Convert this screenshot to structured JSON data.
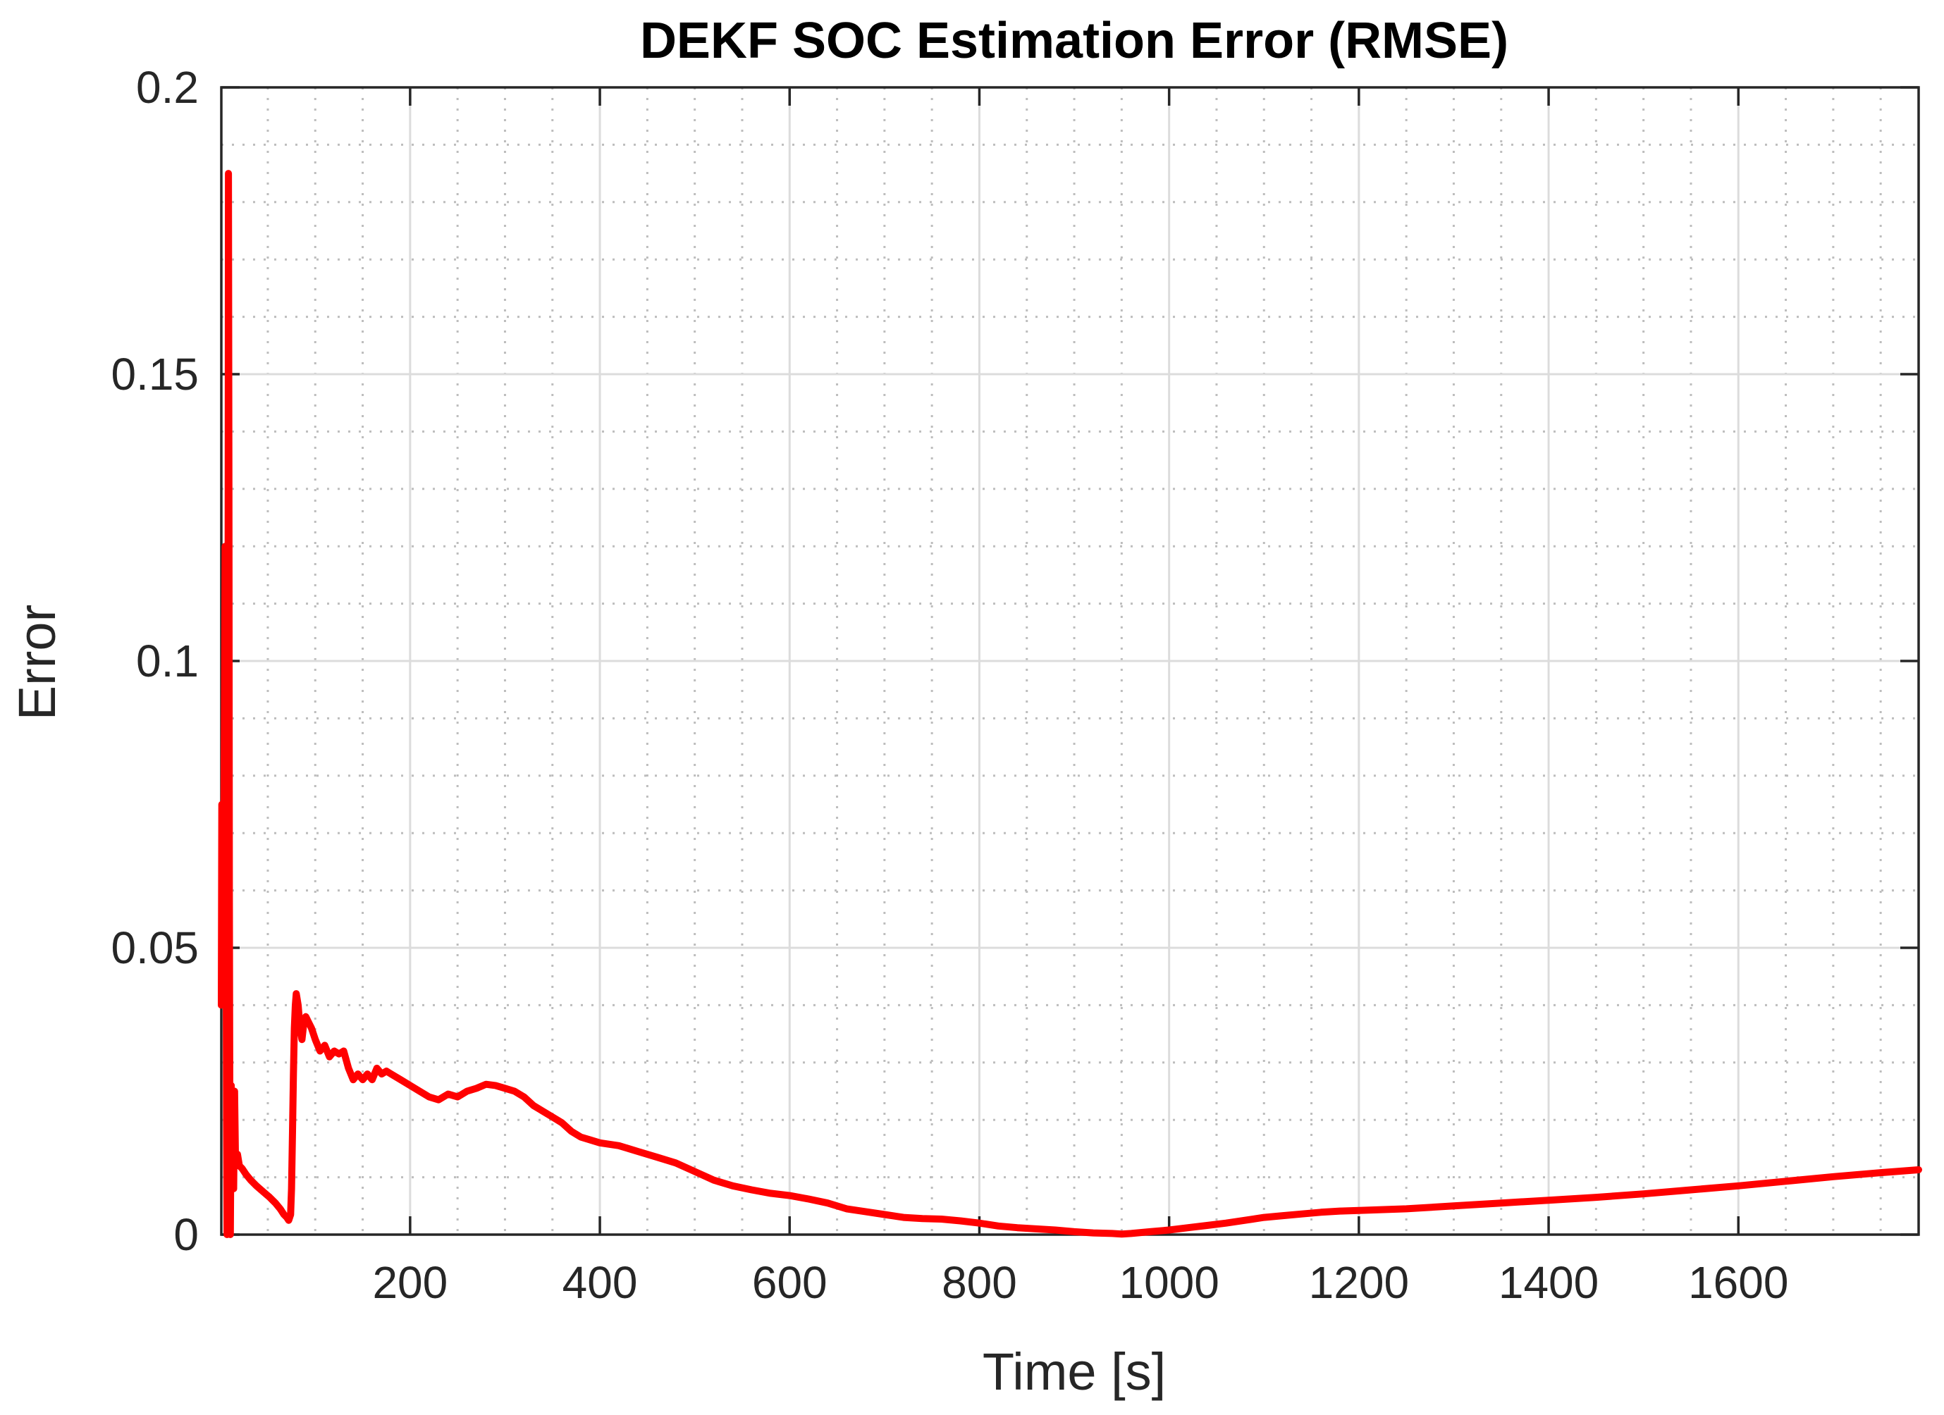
{
  "chart_data": {
    "type": "line",
    "title": "DEKF SOC Estimation Error (RMSE)",
    "xlabel": "Time [s]",
    "ylabel": "Error",
    "xlim": [
      1,
      1790
    ],
    "ylim": [
      0,
      0.2
    ],
    "grid": true,
    "minor_grid": true,
    "x_ticks": [
      200,
      400,
      600,
      800,
      1000,
      1200,
      1400,
      1600
    ],
    "x_tick_labels": [
      "200",
      "400",
      "600",
      "800",
      "1000",
      "1200",
      "1400",
      "1600"
    ],
    "x_minor_step": 50,
    "y_ticks": [
      0,
      0.05,
      0.1,
      0.15,
      0.2
    ],
    "y_tick_labels": [
      "0",
      "0.05",
      "0.1",
      "0.15",
      "0.2"
    ],
    "y_minor_step": 0.01,
    "series": [
      {
        "name": "RMSE",
        "color": "#ff0000",
        "x": [
          1,
          1.5,
          2,
          3,
          4,
          5,
          5.5,
          6,
          6.5,
          7,
          7.5,
          8,
          8.5,
          9,
          9.5,
          10,
          10.5,
          11,
          11.5,
          12,
          13,
          14,
          15,
          16,
          18,
          20,
          23,
          27,
          32,
          38,
          45,
          52,
          58,
          63,
          67,
          70,
          72,
          74,
          75,
          76,
          77,
          78,
          79,
          80,
          82,
          84,
          86,
          88,
          90,
          93,
          96,
          100,
          105,
          110,
          115,
          120,
          125,
          130,
          135,
          140,
          145,
          150,
          155,
          160,
          165,
          170,
          175,
          180,
          190,
          200,
          210,
          220,
          230,
          240,
          250,
          260,
          270,
          280,
          290,
          300,
          310,
          320,
          330,
          340,
          350,
          360,
          370,
          380,
          390,
          400,
          420,
          440,
          460,
          480,
          500,
          520,
          540,
          560,
          580,
          600,
          620,
          640,
          660,
          680,
          700,
          720,
          740,
          760,
          780,
          800,
          820,
          840,
          860,
          880,
          900,
          920,
          940,
          950,
          960,
          980,
          1000,
          1020,
          1040,
          1060,
          1080,
          1100,
          1120,
          1140,
          1160,
          1180,
          1200,
          1250,
          1300,
          1350,
          1400,
          1450,
          1500,
          1550,
          1600,
          1650,
          1700,
          1750,
          1790
        ],
        "y": [
          0.04,
          0.075,
          0.065,
          0.05,
          0.08,
          0.12,
          0.09,
          0.06,
          0.02,
          0.0,
          0.03,
          0.08,
          0.185,
          0.13,
          0.06,
          0.02,
          0.0,
          0.015,
          0.026,
          0.015,
          0.02,
          0.008,
          0.025,
          0.012,
          0.014,
          0.012,
          0.0115,
          0.0105,
          0.0095,
          0.0085,
          0.0075,
          0.0065,
          0.0055,
          0.0045,
          0.0035,
          0.003,
          0.0025,
          0.0035,
          0.008,
          0.018,
          0.028,
          0.036,
          0.04,
          0.042,
          0.04,
          0.036,
          0.034,
          0.037,
          0.038,
          0.037,
          0.036,
          0.034,
          0.032,
          0.033,
          0.031,
          0.032,
          0.0315,
          0.032,
          0.029,
          0.027,
          0.028,
          0.027,
          0.028,
          0.027,
          0.029,
          0.028,
          0.0285,
          0.028,
          0.027,
          0.026,
          0.025,
          0.024,
          0.0235,
          0.0245,
          0.024,
          0.025,
          0.0255,
          0.0262,
          0.026,
          0.0255,
          0.025,
          0.024,
          0.0225,
          0.0215,
          0.0205,
          0.0195,
          0.018,
          0.017,
          0.0165,
          0.016,
          0.0155,
          0.0145,
          0.0135,
          0.0125,
          0.011,
          0.0095,
          0.0085,
          0.0078,
          0.0072,
          0.0068,
          0.0062,
          0.0055,
          0.0045,
          0.004,
          0.0035,
          0.003,
          0.0028,
          0.0027,
          0.0024,
          0.002,
          0.0015,
          0.0012,
          0.001,
          0.0008,
          0.0005,
          0.0003,
          0.0002,
          0.0001,
          0.0002,
          0.0005,
          0.0008,
          0.0012,
          0.0016,
          0.002,
          0.0025,
          0.003,
          0.0033,
          0.0036,
          0.0039,
          0.0041,
          0.0042,
          0.0045,
          0.005,
          0.0055,
          0.006,
          0.0065,
          0.0071,
          0.0078,
          0.0085,
          0.0093,
          0.0101,
          0.0108,
          0.0113
        ]
      }
    ]
  }
}
